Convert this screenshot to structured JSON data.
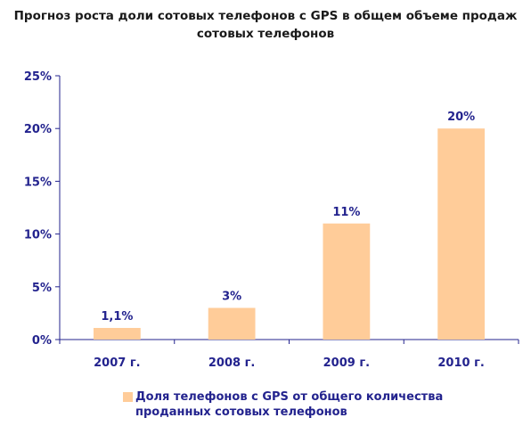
{
  "colors": {
    "bar": "#ffcc99",
    "axis": "#23238e",
    "text": "#23238e",
    "title": "#1a1a1a"
  },
  "chart_data": {
    "type": "bar",
    "title_lines": [
      "Прогноз роста доли сотовых телефонов с GPS в общем объеме продаж",
      "сотовых телефонов"
    ],
    "categories": [
      "2007 г.",
      "2008 г.",
      "2009 г.",
      "2010 г."
    ],
    "series": [
      {
        "name": "Доля телефонов с GPS от общего количества проданных сотовых телефонов",
        "values": [
          1.1,
          3,
          11,
          20
        ],
        "data_labels": [
          "1,1%",
          "3%",
          "11%",
          "20%"
        ]
      }
    ],
    "y_ticks": [
      "0%",
      "5%",
      "10%",
      "15%",
      "20%",
      "25%"
    ],
    "ylim": [
      0,
      25
    ],
    "grid": false,
    "legend_position": "bottom"
  }
}
